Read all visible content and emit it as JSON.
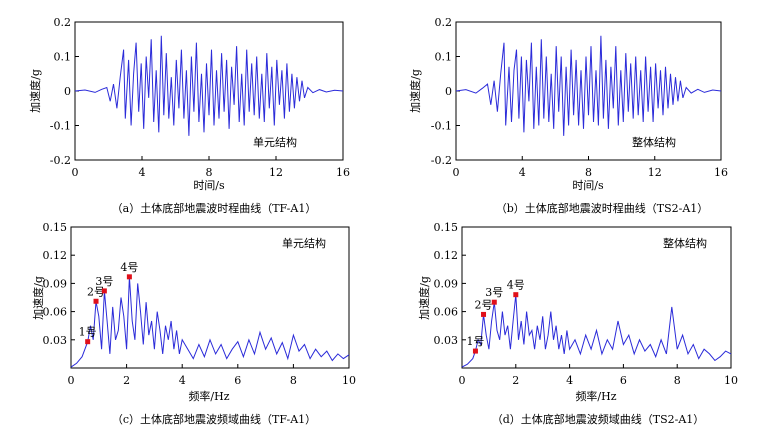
{
  "chart_data": [
    {
      "type": "line",
      "caption": "（a）土体底部地震波时程曲线（TF-A1）",
      "annotation": "单元结构",
      "xlabel": "时间/s",
      "ylabel": "加速度/g",
      "xlim": [
        0,
        16
      ],
      "ylim": [
        -0.2,
        0.2
      ],
      "xticks": [
        "0",
        "4",
        "8",
        "12",
        "16"
      ],
      "yticks": [
        "-0.2",
        "-0.1",
        "0",
        "0.1",
        "0.2"
      ],
      "ytick_values": [
        -0.2,
        -0.1,
        0,
        0.1,
        0.2
      ],
      "xtick_values": [
        0,
        4,
        8,
        12,
        16
      ],
      "series": [
        {
          "color": "#2b2bd9",
          "x": [
            0,
            0.6,
            1.2,
            1.6,
            1.9,
            2.1,
            2.3,
            2.5,
            2.7,
            2.9,
            3.0,
            3.2,
            3.35,
            3.5,
            3.65,
            3.8,
            3.95,
            4.1,
            4.25,
            4.4,
            4.55,
            4.7,
            4.85,
            5.0,
            5.15,
            5.3,
            5.45,
            5.6,
            5.75,
            5.9,
            6.05,
            6.2,
            6.35,
            6.5,
            6.65,
            6.8,
            6.95,
            7.1,
            7.25,
            7.4,
            7.55,
            7.7,
            7.85,
            8.0,
            8.15,
            8.3,
            8.45,
            8.6,
            8.75,
            8.9,
            9.05,
            9.2,
            9.35,
            9.5,
            9.65,
            9.8,
            9.95,
            10.1,
            10.25,
            10.4,
            10.55,
            10.7,
            10.85,
            11.0,
            11.15,
            11.3,
            11.45,
            11.6,
            11.75,
            11.9,
            12.05,
            12.2,
            12.35,
            12.5,
            12.65,
            12.8,
            12.95,
            13.1,
            13.25,
            13.4,
            13.55,
            13.7,
            13.9,
            14.2,
            14.6,
            15.0,
            15.5,
            16.0
          ],
          "y": [
            0,
            0.003,
            -0.004,
            0.005,
            0.01,
            -0.03,
            0.02,
            -0.05,
            0.04,
            0.12,
            -0.08,
            0.09,
            -0.1,
            0.05,
            0.14,
            -0.06,
            0.08,
            -0.11,
            0.1,
            -0.02,
            0.15,
            -0.09,
            0.06,
            -0.12,
            0.16,
            -0.07,
            0.11,
            -0.08,
            0.04,
            -0.1,
            0.09,
            -0.05,
            0.12,
            -0.08,
            0.06,
            -0.13,
            0.1,
            -0.06,
            0.14,
            -0.09,
            0.05,
            -0.12,
            0.08,
            -0.07,
            0.12,
            -0.1,
            0.06,
            -0.08,
            0.11,
            -0.06,
            0.09,
            -0.11,
            0.07,
            -0.04,
            0.13,
            -0.09,
            0.05,
            -0.1,
            0.12,
            -0.06,
            0.08,
            -0.07,
            0.1,
            -0.08,
            0.05,
            -0.09,
            0.11,
            -0.05,
            0.07,
            -0.1,
            0.09,
            -0.04,
            0.06,
            -0.08,
            0.08,
            -0.06,
            0.05,
            -0.05,
            0.04,
            -0.03,
            0.03,
            -0.02,
            0.01,
            -0.005,
            0.004,
            -0.003,
            0.002,
            0
          ]
        }
      ]
    },
    {
      "type": "line",
      "caption": "（b）土体底部地震波时程曲线（TS2-A1）",
      "annotation": "整体结构",
      "xlabel": "时间/s",
      "ylabel": "加速度/g",
      "xlim": [
        0,
        16
      ],
      "ylim": [
        -0.2,
        0.2
      ],
      "xticks": [
        "0",
        "4",
        "8",
        "12",
        "16"
      ],
      "yticks": [
        "-0.2",
        "-0.1",
        "0",
        "0.1",
        "0.2"
      ],
      "ytick_values": [
        -0.2,
        -0.1,
        0,
        0.1,
        0.2
      ],
      "xtick_values": [
        0,
        4,
        8,
        12,
        16
      ],
      "series": [
        {
          "color": "#2b2bd9",
          "x": [
            0,
            0.6,
            1.2,
            1.6,
            1.9,
            2.1,
            2.3,
            2.5,
            2.7,
            2.9,
            3.0,
            3.2,
            3.35,
            3.5,
            3.65,
            3.8,
            3.95,
            4.1,
            4.25,
            4.4,
            4.55,
            4.7,
            4.85,
            5.0,
            5.15,
            5.3,
            5.45,
            5.6,
            5.75,
            5.9,
            6.05,
            6.2,
            6.35,
            6.5,
            6.65,
            6.8,
            6.95,
            7.1,
            7.25,
            7.4,
            7.55,
            7.7,
            7.85,
            8.0,
            8.15,
            8.3,
            8.45,
            8.6,
            8.75,
            8.9,
            9.05,
            9.2,
            9.35,
            9.5,
            9.65,
            9.8,
            9.95,
            10.1,
            10.25,
            10.4,
            10.55,
            10.7,
            10.85,
            11.0,
            11.15,
            11.3,
            11.45,
            11.6,
            11.75,
            11.9,
            12.05,
            12.2,
            12.35,
            12.5,
            12.65,
            12.8,
            12.95,
            13.1,
            13.25,
            13.4,
            13.55,
            13.7,
            13.9,
            14.2,
            14.6,
            15.0,
            15.5,
            16.0
          ],
          "y": [
            0,
            0.004,
            -0.006,
            0.008,
            0.02,
            -0.04,
            0.03,
            -0.06,
            0.05,
            0.14,
            -0.1,
            0.07,
            -0.09,
            0.06,
            0.12,
            -0.08,
            0.1,
            -0.12,
            0.09,
            -0.03,
            0.14,
            -0.11,
            0.07,
            -0.1,
            0.15,
            -0.08,
            0.1,
            -0.09,
            0.05,
            -0.11,
            0.13,
            -0.06,
            0.1,
            -0.13,
            0.07,
            -0.1,
            0.12,
            -0.07,
            0.09,
            -0.1,
            0.06,
            -0.11,
            0.1,
            -0.07,
            0.13,
            -0.09,
            0.06,
            -0.1,
            0.16,
            -0.08,
            0.09,
            -0.11,
            0.07,
            -0.05,
            0.13,
            -0.1,
            0.06,
            -0.09,
            0.11,
            -0.06,
            0.08,
            -0.08,
            0.1,
            -0.07,
            0.06,
            -0.09,
            0.1,
            -0.06,
            0.07,
            -0.09,
            0.08,
            -0.05,
            0.06,
            -0.07,
            0.07,
            -0.05,
            0.05,
            -0.04,
            0.04,
            -0.03,
            0.03,
            -0.02,
            0.01,
            -0.006,
            0.005,
            -0.004,
            0.003,
            0
          ]
        }
      ]
    },
    {
      "type": "line",
      "caption": "（c）土体底部地震波频域曲线（TF-A1）",
      "annotation": "单元结构",
      "xlabel": "频率/Hz",
      "ylabel": "加速度/g",
      "xlim": [
        0,
        10
      ],
      "ylim": [
        0,
        0.15
      ],
      "xticks": [
        "0",
        "2",
        "4",
        "6",
        "8",
        "10"
      ],
      "yticks": [
        "0.03",
        "0.06",
        "0.09",
        "0.12",
        "0.15"
      ],
      "ytick_values": [
        0.03,
        0.06,
        0.09,
        0.12,
        0.15
      ],
      "xtick_values": [
        0,
        2,
        4,
        6,
        8,
        10
      ],
      "series": [
        {
          "color": "#2b2bd9",
          "x": [
            0,
            0.2,
            0.4,
            0.6,
            0.7,
            0.8,
            0.9,
            1.0,
            1.1,
            1.2,
            1.3,
            1.4,
            1.5,
            1.6,
            1.7,
            1.8,
            1.9,
            2.0,
            2.1,
            2.2,
            2.3,
            2.4,
            2.5,
            2.6,
            2.7,
            2.8,
            2.9,
            3.0,
            3.1,
            3.2,
            3.3,
            3.4,
            3.5,
            3.6,
            3.7,
            3.8,
            3.9,
            4.0,
            4.2,
            4.4,
            4.6,
            4.8,
            5.0,
            5.2,
            5.4,
            5.6,
            5.8,
            6.0,
            6.2,
            6.4,
            6.6,
            6.8,
            7.0,
            7.2,
            7.4,
            7.6,
            7.8,
            8.0,
            8.2,
            8.4,
            8.6,
            8.8,
            9.0,
            9.2,
            9.4,
            9.6,
            9.8,
            10.0
          ],
          "y": [
            0.001,
            0.005,
            0.012,
            0.028,
            0.045,
            0.03,
            0.071,
            0.055,
            0.02,
            0.082,
            0.05,
            0.015,
            0.065,
            0.03,
            0.04,
            0.075,
            0.055,
            0.02,
            0.097,
            0.05,
            0.03,
            0.09,
            0.06,
            0.025,
            0.07,
            0.035,
            0.05,
            0.02,
            0.06,
            0.04,
            0.015,
            0.045,
            0.03,
            0.05,
            0.02,
            0.04,
            0.015,
            0.03,
            0.02,
            0.01,
            0.025,
            0.012,
            0.03,
            0.015,
            0.025,
            0.01,
            0.02,
            0.028,
            0.012,
            0.03,
            0.015,
            0.038,
            0.02,
            0.032,
            0.015,
            0.027,
            0.01,
            0.035,
            0.018,
            0.025,
            0.01,
            0.02,
            0.012,
            0.018,
            0.008,
            0.015,
            0.01,
            0.014
          ]
        }
      ],
      "peaks": [
        {
          "label": "1号",
          "x": 0.6,
          "y": 0.028
        },
        {
          "label": "2号",
          "x": 0.9,
          "y": 0.071
        },
        {
          "label": "3号",
          "x": 1.2,
          "y": 0.082
        },
        {
          "label": "4号",
          "x": 2.1,
          "y": 0.097
        }
      ]
    },
    {
      "type": "line",
      "caption": "（d）土体底部地震波频域曲线（TS2-A1）",
      "annotation": "整体结构",
      "xlabel": "频率/Hz",
      "ylabel": "加速度/g",
      "xlim": [
        0,
        10
      ],
      "ylim": [
        0,
        0.15
      ],
      "xticks": [
        "0",
        "2",
        "4",
        "6",
        "8",
        "10"
      ],
      "yticks": [
        "0.03",
        "0.06",
        "0.09",
        "0.12",
        "0.15"
      ],
      "ytick_values": [
        0.03,
        0.06,
        0.09,
        0.12,
        0.15
      ],
      "xtick_values": [
        0,
        2,
        4,
        6,
        8,
        10
      ],
      "series": [
        {
          "color": "#2b2bd9",
          "x": [
            0,
            0.2,
            0.4,
            0.5,
            0.6,
            0.7,
            0.8,
            0.9,
            1.0,
            1.1,
            1.2,
            1.3,
            1.4,
            1.5,
            1.6,
            1.7,
            1.8,
            1.9,
            2.0,
            2.1,
            2.2,
            2.3,
            2.4,
            2.5,
            2.6,
            2.7,
            2.8,
            2.9,
            3.0,
            3.1,
            3.2,
            3.3,
            3.4,
            3.5,
            3.6,
            3.7,
            3.8,
            3.9,
            4.0,
            4.2,
            4.4,
            4.6,
            4.8,
            5.0,
            5.2,
            5.4,
            5.6,
            5.8,
            6.0,
            6.2,
            6.4,
            6.6,
            6.8,
            7.0,
            7.2,
            7.4,
            7.6,
            7.8,
            8.0,
            8.2,
            8.4,
            8.6,
            8.8,
            9.0,
            9.2,
            9.4,
            9.6,
            9.8,
            10.0
          ],
          "y": [
            0.001,
            0.004,
            0.01,
            0.018,
            0.03,
            0.025,
            0.057,
            0.035,
            0.02,
            0.05,
            0.07,
            0.04,
            0.03,
            0.06,
            0.035,
            0.045,
            0.02,
            0.05,
            0.078,
            0.03,
            0.05,
            0.025,
            0.06,
            0.035,
            0.04,
            0.02,
            0.045,
            0.03,
            0.055,
            0.02,
            0.035,
            0.06,
            0.03,
            0.045,
            0.02,
            0.035,
            0.015,
            0.04,
            0.02,
            0.03,
            0.015,
            0.035,
            0.02,
            0.04,
            0.015,
            0.03,
            0.02,
            0.05,
            0.025,
            0.035,
            0.015,
            0.03,
            0.018,
            0.025,
            0.012,
            0.03,
            0.015,
            0.065,
            0.02,
            0.035,
            0.015,
            0.025,
            0.01,
            0.02,
            0.015,
            0.008,
            0.012,
            0.018,
            0.015
          ]
        }
      ],
      "peaks": [
        {
          "label": "1号",
          "x": 0.5,
          "y": 0.018
        },
        {
          "label": "2号",
          "x": 0.8,
          "y": 0.057
        },
        {
          "label": "3号",
          "x": 1.2,
          "y": 0.07
        },
        {
          "label": "4号",
          "x": 2.0,
          "y": 0.078
        }
      ]
    }
  ]
}
